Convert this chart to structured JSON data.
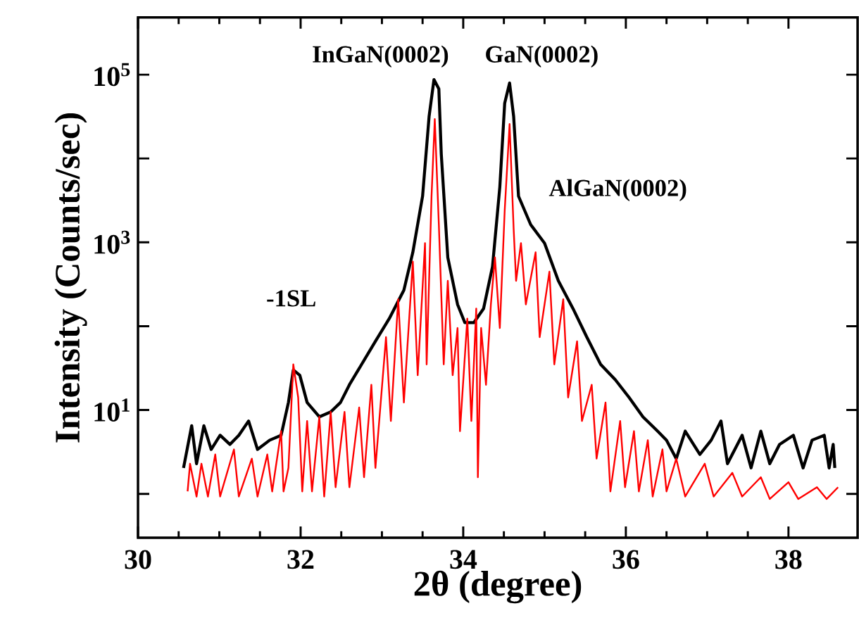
{
  "chart_data": {
    "type": "line",
    "xlabel": "2θ (degree)",
    "ylabel": "Intensity (Counts/sec)",
    "log": "y",
    "marker": "none",
    "line_style": "solid",
    "xlim": [
      30,
      38.85
    ],
    "ylim": [
      0.3,
      480000
    ],
    "xticks": [
      30,
      32,
      34,
      36,
      38
    ],
    "yticks": [
      {
        "value": 1,
        "label": null
      },
      {
        "value": 10,
        "label": "10$^{1}$"
      },
      {
        "value": 100,
        "label": null
      },
      {
        "value": 1000,
        "label": "10$^{3}$"
      },
      {
        "value": 10000,
        "label": null
      },
      {
        "value": 100000,
        "label": "10$^{5}$"
      }
    ],
    "annotations": [
      "InGaN(0002)",
      "GaN(0002)",
      "AlGaN(0002)",
      "-1SL"
    ],
    "series": [
      {
        "color": "#000000",
        "x": [
          30.56,
          30.66,
          30.72,
          30.81,
          30.9,
          31.01,
          31.13,
          31.24,
          31.36,
          31.47,
          31.62,
          31.76,
          31.85,
          31.91,
          31.99,
          32.08,
          32.23,
          32.37,
          32.49,
          32.6,
          32.75,
          32.92,
          33.09,
          33.27,
          33.38,
          33.5,
          33.58,
          33.64,
          33.7,
          33.73,
          33.81,
          33.93,
          34.02,
          34.13,
          34.25,
          34.36,
          34.45,
          34.51,
          34.57,
          34.62,
          34.68,
          34.83,
          35.0,
          35.17,
          35.35,
          35.52,
          35.69,
          35.87,
          36.04,
          36.21,
          36.39,
          36.5,
          36.62,
          36.73,
          36.91,
          37.05,
          37.17,
          37.25,
          37.43,
          37.54,
          37.66,
          37.77,
          37.89,
          38.06,
          38.18,
          38.29,
          38.44,
          38.5,
          38.55,
          38.57
        ],
        "values": [
          2.04,
          6.5,
          2.29,
          6.5,
          3.39,
          5.0,
          3.89,
          5.0,
          7.4,
          3.39,
          4.37,
          5.0,
          12.3,
          30,
          26,
          12.3,
          8.3,
          9.5,
          12.3,
          20,
          35,
          66,
          123,
          269,
          759,
          3548,
          31620,
          87100,
          67600,
          11220,
          661,
          182,
          110,
          110,
          162,
          513,
          4571,
          45700,
          79400,
          31620,
          3548,
          1622,
          977,
          347,
          162,
          74,
          35,
          23,
          14.1,
          8.3,
          5.6,
          4.37,
          2.63,
          5.6,
          2.95,
          4.37,
          7.4,
          2.29,
          5.0,
          2.04,
          5.6,
          2.29,
          3.89,
          5.0,
          2.04,
          4.37,
          5.0,
          2.04,
          3.89,
          2.04
        ]
      },
      {
        "color": "#ff0000",
        "x": [
          30.61,
          30.64,
          30.72,
          30.78,
          30.86,
          30.95,
          31.01,
          31.18,
          31.24,
          31.4,
          31.47,
          31.59,
          31.65,
          31.76,
          31.79,
          31.85,
          31.91,
          31.97,
          32.02,
          32.08,
          32.14,
          32.23,
          32.29,
          32.37,
          32.43,
          32.54,
          32.6,
          32.72,
          32.78,
          32.87,
          32.92,
          33.05,
          33.11,
          33.2,
          33.27,
          33.38,
          33.44,
          33.53,
          33.55,
          33.61,
          33.65,
          33.7,
          33.76,
          33.81,
          33.87,
          33.93,
          33.96,
          34.05,
          34.1,
          34.16,
          34.18,
          34.22,
          34.28,
          34.34,
          34.39,
          34.45,
          34.51,
          34.57,
          34.62,
          34.65,
          34.71,
          34.77,
          34.89,
          34.94,
          35.06,
          35.12,
          35.23,
          35.29,
          35.4,
          35.46,
          35.58,
          35.64,
          35.75,
          35.81,
          35.93,
          35.99,
          36.1,
          36.16,
          36.27,
          36.33,
          36.45,
          36.5,
          36.62,
          36.73,
          36.97,
          37.08,
          37.31,
          37.43,
          37.66,
          37.77,
          38.0,
          38.12,
          38.35,
          38.47,
          38.61
        ],
        "values": [
          1.07,
          2.29,
          0.93,
          2.29,
          0.93,
          2.95,
          0.93,
          3.39,
          0.93,
          2.63,
          0.93,
          2.95,
          1.07,
          5.6,
          1.07,
          2.04,
          35,
          14.1,
          1.07,
          7.4,
          1.07,
          8.3,
          0.93,
          9.5,
          1.2,
          9.5,
          1.2,
          10.7,
          1.58,
          20,
          2.04,
          74,
          7.4,
          209,
          12.3,
          589,
          26,
          977,
          35,
          3548,
          29510,
          1622,
          35,
          347,
          26,
          95,
          5.6,
          123,
          7.4,
          162,
          1.58,
          95,
          20,
          182,
          661,
          95,
          2399,
          25700,
          1445,
          347,
          977,
          182,
          759,
          74,
          447,
          35,
          209,
          14.1,
          66,
          7.4,
          20,
          2.63,
          12.3,
          1.07,
          7.4,
          1.2,
          5.6,
          1.07,
          4.37,
          0.93,
          3.39,
          1.07,
          2.63,
          0.93,
          2.29,
          0.93,
          1.78,
          0.93,
          1.58,
          0.87,
          1.38,
          0.87,
          1.2,
          0.87,
          1.2
        ]
      }
    ]
  }
}
